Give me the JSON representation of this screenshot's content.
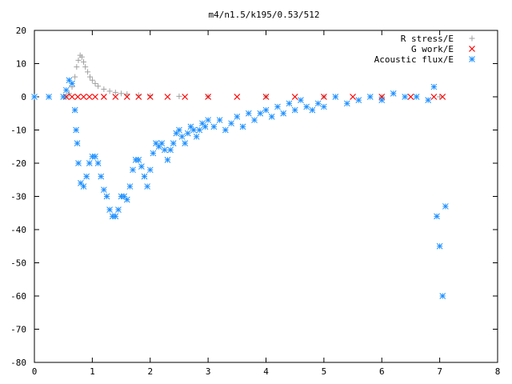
{
  "chart_data": {
    "type": "scatter",
    "title": "m4/n1.5/k195/0.53/512",
    "xlabel": "",
    "ylabel": "",
    "xlim": [
      0,
      8
    ],
    "ylim": [
      -80,
      20
    ],
    "x_ticks": [
      "0",
      "1",
      "2",
      "3",
      "4",
      "5",
      "6",
      "7",
      "8"
    ],
    "y_ticks": [
      "20",
      "10",
      "0",
      "-10",
      "-20",
      "-30",
      "-40",
      "-50",
      "-60",
      "-70",
      "-80"
    ],
    "grid": false,
    "legend_position": "top-right",
    "series": [
      {
        "name": "R stress/E",
        "color": "#a0a0a0",
        "marker": "plus",
        "x": [
          0.55,
          0.6,
          0.65,
          0.7,
          0.73,
          0.76,
          0.79,
          0.82,
          0.85,
          0.88,
          0.92,
          0.96,
          1.0,
          1.05,
          1.1,
          1.2,
          1.3,
          1.4,
          1.5,
          1.6,
          1.8,
          2.0,
          2.5,
          3.0,
          4.0,
          5.0,
          6.0,
          7.0
        ],
        "y": [
          0,
          1,
          3,
          6,
          9,
          11,
          12.5,
          12,
          10.5,
          9,
          7.5,
          6,
          5,
          4,
          3.2,
          2.3,
          1.7,
          1.3,
          1.0,
          0.8,
          0.5,
          0.3,
          0.15,
          0.1,
          0.05,
          0.03,
          0.02,
          0.01
        ]
      },
      {
        "name": "G work/E",
        "color": "#ff0000",
        "marker": "x",
        "x": [
          0.55,
          0.65,
          0.75,
          0.85,
          0.95,
          1.05,
          1.2,
          1.4,
          1.6,
          1.8,
          2.0,
          2.3,
          2.6,
          3.0,
          3.5,
          4.0,
          4.5,
          5.0,
          5.5,
          6.0,
          6.5,
          6.9,
          7.05
        ],
        "y": [
          0,
          0,
          0,
          0,
          0,
          0,
          0,
          0,
          0,
          0,
          0,
          0,
          0,
          0,
          0,
          0,
          0,
          0,
          0,
          0,
          0,
          0,
          0
        ]
      },
      {
        "name": "Acoustic flux/E",
        "color": "#1e90ff",
        "marker": "star",
        "x": [
          0,
          0.25,
          0.5,
          0.55,
          0.6,
          0.65,
          0.7,
          0.72,
          0.74,
          0.76,
          0.8,
          0.85,
          0.9,
          0.95,
          1.0,
          1.05,
          1.1,
          1.15,
          1.2,
          1.25,
          1.3,
          1.35,
          1.4,
          1.45,
          1.5,
          1.55,
          1.6,
          1.65,
          1.7,
          1.75,
          1.8,
          1.85,
          1.9,
          1.95,
          2.0,
          2.05,
          2.1,
          2.15,
          2.2,
          2.25,
          2.3,
          2.35,
          2.4,
          2.45,
          2.5,
          2.55,
          2.6,
          2.65,
          2.7,
          2.75,
          2.8,
          2.85,
          2.9,
          2.95,
          3.0,
          3.1,
          3.2,
          3.3,
          3.4,
          3.5,
          3.6,
          3.7,
          3.8,
          3.9,
          4.0,
          4.1,
          4.2,
          4.3,
          4.4,
          4.5,
          4.6,
          4.7,
          4.8,
          4.9,
          5.0,
          5.2,
          5.4,
          5.6,
          5.8,
          6.0,
          6.2,
          6.4,
          6.6,
          6.8,
          6.9,
          6.95,
          7.0,
          7.05,
          7.1
        ],
        "y": [
          0,
          0,
          0,
          2,
          5,
          4,
          -4,
          -10,
          -14,
          -20,
          -26,
          -27,
          -24,
          -20,
          -18,
          -18,
          -20,
          -24,
          -28,
          -30,
          -34,
          -36,
          -36,
          -34,
          -30,
          -30,
          -31,
          -27,
          -22,
          -19,
          -19,
          -21,
          -24,
          -27,
          -22,
          -17,
          -14,
          -15,
          -14,
          -16,
          -19,
          -16,
          -14,
          -11,
          -10,
          -12,
          -14,
          -11,
          -9,
          -10,
          -12,
          -10,
          -8,
          -9,
          -7,
          -9,
          -7,
          -10,
          -8,
          -6,
          -9,
          -5,
          -7,
          -5,
          -4,
          -6,
          -3,
          -5,
          -2,
          -4,
          -1,
          -3,
          -4,
          -2,
          -3,
          0,
          -2,
          -1,
          0,
          -1,
          1,
          0,
          0,
          -1,
          3,
          -36,
          -45,
          -60,
          -33
        ]
      }
    ]
  }
}
